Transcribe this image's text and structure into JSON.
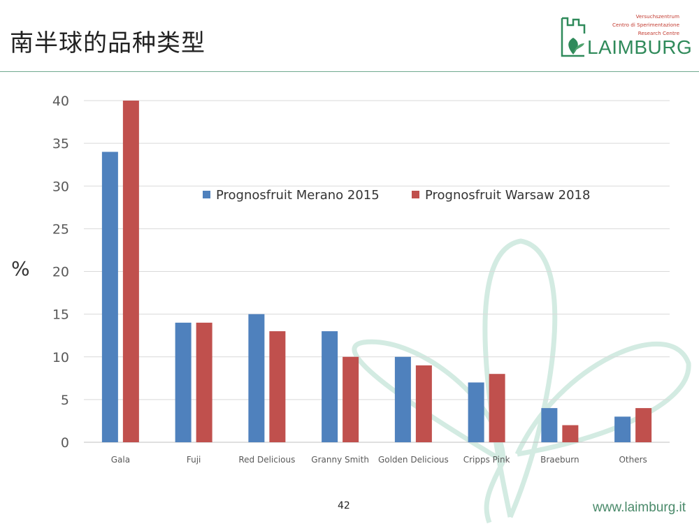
{
  "slide": {
    "title": "南半球的品种类型",
    "page_number": "42",
    "website": "www.laimburg.it"
  },
  "logo": {
    "line1": "Versuchszentrum",
    "line2": "Centro di Sperimentazione",
    "line3": "Research Centre",
    "wordmark": "LAIMBURG"
  },
  "colors": {
    "series1": "#4f81bd",
    "series2": "#c0504d",
    "accent": "#2f8a5a",
    "decor": "#cfe8df"
  },
  "chart_data": {
    "type": "bar",
    "categories": [
      "Gala",
      "Fuji",
      "Red Delicious",
      "Granny Smith",
      "Golden Delicious",
      "Cripps Pink",
      "Braeburn",
      "Others"
    ],
    "series": [
      {
        "name": "Prognosfruit Merano 2015",
        "values": [
          34,
          14,
          15,
          13,
          10,
          7,
          4,
          3
        ]
      },
      {
        "name": "Prognosfruit Warsaw 2018",
        "values": [
          40,
          14,
          13,
          10,
          9,
          8,
          2,
          4
        ]
      }
    ],
    "yticks": [
      "0",
      "5",
      "10",
      "15",
      "20",
      "25",
      "30",
      "35",
      "40"
    ],
    "ylim": [
      0,
      40
    ],
    "ylabel": "%",
    "xlabel": "",
    "grid": true,
    "legend_position": "top-center"
  }
}
